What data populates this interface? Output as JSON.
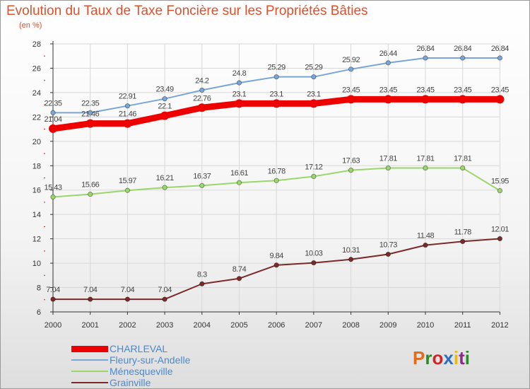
{
  "header": {
    "title": "Evolution du Taux de Taxe Foncière sur les Propriétés Bâties",
    "subtitle": "(en %)"
  },
  "logo": {
    "text": "Proxiti",
    "colors": [
      "#e06c1c",
      "#2a8a2a",
      "#d22424",
      "#2c6fc4",
      "#e6b81c",
      "#8a2a8a",
      "#2a8a2a"
    ]
  },
  "colors": {
    "accent": "#e0502a",
    "axis": "#333333",
    "grid": "#d8d8d8",
    "tick_red": "#cc2020"
  },
  "chart_data": {
    "type": "line",
    "x": [
      "2000",
      "2001",
      "2002",
      "2003",
      "2004",
      "2005",
      "2006",
      "2007",
      "2008",
      "2009",
      "2010",
      "2011",
      "2012"
    ],
    "ylim": [
      6,
      28
    ],
    "yticks": [
      6,
      8,
      10,
      12,
      14,
      16,
      18,
      20,
      22,
      24,
      26,
      28
    ],
    "grid": true,
    "legend_position": "bottom-left",
    "series": [
      {
        "name": "CHARLEVAL",
        "color": "#ee0000",
        "values": [
          21.04,
          21.46,
          21.46,
          22.1,
          22.76,
          23.1,
          23.1,
          23.1,
          23.45,
          23.45,
          23.45,
          23.45,
          23.45
        ],
        "labels": [
          "21.04",
          "21.46",
          "21.46",
          "22.1",
          "22.76",
          "23.1",
          "23.1",
          "23.1",
          "23.45",
          "23.45",
          "23.45",
          "23.45",
          "23.45"
        ]
      },
      {
        "name": "Fleury-sur-Andelle",
        "color": "#7aa6d6",
        "values": [
          22.35,
          22.35,
          22.91,
          23.49,
          24.2,
          24.8,
          25.29,
          25.29,
          25.92,
          26.44,
          26.84,
          26.84,
          26.84
        ],
        "labels": [
          "22.35",
          "22.35",
          "22.91",
          "23.49",
          "24.2",
          "24.8",
          "25.29",
          "25.29",
          "25.92",
          "26.44",
          "26.84",
          "26.84",
          "26.84"
        ]
      },
      {
        "name": "Ménesqueville",
        "color": "#9ad66a",
        "values": [
          15.43,
          15.66,
          15.97,
          16.21,
          16.37,
          16.61,
          16.78,
          17.12,
          17.63,
          17.81,
          17.81,
          17.81,
          15.95
        ],
        "labels": [
          "15.43",
          "15.66",
          "15.97",
          "16.21",
          "16.37",
          "16.61",
          "16.78",
          "17.12",
          "17.63",
          "17.81",
          "17.81",
          "17.81",
          "15.95"
        ]
      },
      {
        "name": "Grainville",
        "color": "#7a2a2a",
        "values": [
          7.04,
          7.04,
          7.04,
          7.04,
          8.3,
          8.74,
          9.84,
          10.03,
          10.31,
          10.73,
          11.48,
          11.78,
          12.01
        ],
        "labels": [
          "7.04",
          "7.04",
          "7.04",
          "7.04",
          "8.3",
          "8.74",
          "9.84",
          "10.03",
          "10.31",
          "10.73",
          "11.48",
          "11.78",
          "12.01"
        ]
      }
    ]
  }
}
